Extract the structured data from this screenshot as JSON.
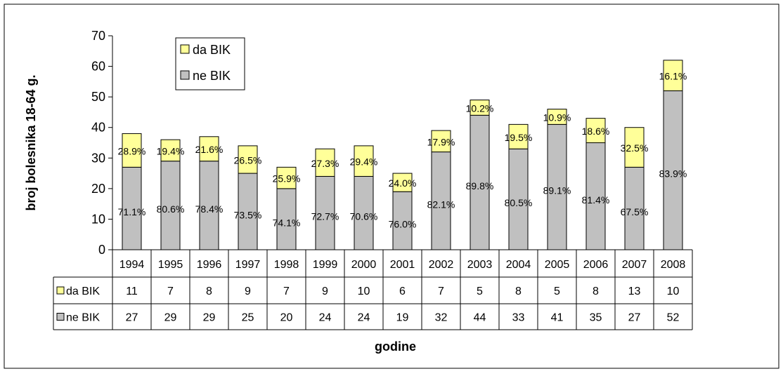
{
  "chart_data": {
    "type": "bar",
    "stacked": true,
    "categories": [
      "1994",
      "1995",
      "1996",
      "1997",
      "1998",
      "1999",
      "2000",
      "2001",
      "2002",
      "2003",
      "2004",
      "2005",
      "2006",
      "2007",
      "2008"
    ],
    "series": [
      {
        "name": "ne BIK",
        "color": "#c0c0c0",
        "values": [
          27,
          29,
          29,
          25,
          20,
          24,
          24,
          19,
          32,
          44,
          33,
          41,
          35,
          27,
          52
        ],
        "labels": [
          "71.1%",
          "80.6%",
          "78.4%",
          "73.5%",
          "74.1%",
          "72.7%",
          "70.6%",
          "76.0%",
          "82.1%",
          "89.8%",
          "80.5%",
          "89.1%",
          "81.4%",
          "67.5%",
          "83.9%"
        ]
      },
      {
        "name": "da BIK",
        "color": "#ffff99",
        "values": [
          11,
          7,
          8,
          9,
          7,
          9,
          10,
          6,
          7,
          5,
          8,
          5,
          8,
          13,
          10
        ],
        "labels": [
          "28.9%",
          "19.4%",
          "21.6%",
          "26.5%",
          "25.9%",
          "27.3%",
          "29.4%",
          "24.0%",
          "17.9%",
          "10.2%",
          "19.5%",
          "10.9%",
          "18.6%",
          "32.5%",
          "16.1%"
        ]
      }
    ],
    "ylabel": "broj bolesnika 18-64 g.",
    "xlabel": "godine",
    "ylim": [
      0,
      70
    ],
    "yticks": [
      "0",
      "10",
      "20",
      "30",
      "40",
      "50",
      "60",
      "70"
    ],
    "grid": false,
    "legend": "top-left",
    "data_table": true
  }
}
